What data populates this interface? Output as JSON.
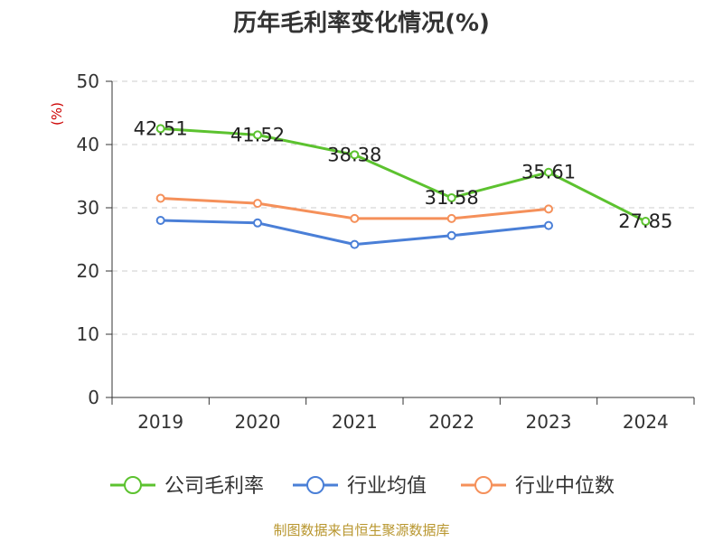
{
  "chart_data": {
    "type": "line",
    "title": "历年毛利率变化情况(%)",
    "ylabel": "(%)",
    "categories": [
      "2019",
      "2020",
      "2021",
      "2022",
      "2023",
      "2024"
    ],
    "ylim": [
      0,
      50
    ],
    "yticks": [
      0,
      10,
      20,
      30,
      40,
      50
    ],
    "grid": true,
    "legend_position": "bottom",
    "series": [
      {
        "name": "公司毛利率",
        "color": "#5cc22f",
        "values": [
          42.51,
          41.52,
          38.38,
          31.58,
          35.61,
          27.85
        ],
        "labels": [
          "42.51",
          "41.52",
          "38.38",
          "31.58",
          "35.61",
          "27.85"
        ]
      },
      {
        "name": "行业均值",
        "color": "#4a7fd7",
        "values": [
          28.0,
          27.6,
          24.2,
          25.6,
          27.2,
          null
        ]
      },
      {
        "name": "行业中位数",
        "color": "#f5905a",
        "values": [
          31.5,
          30.7,
          28.3,
          28.3,
          29.8,
          null
        ]
      }
    ],
    "ylabel_color": "#cc0000",
    "source": "制图数据来自恒生聚源数据库",
    "source_color": "#b8962e"
  }
}
